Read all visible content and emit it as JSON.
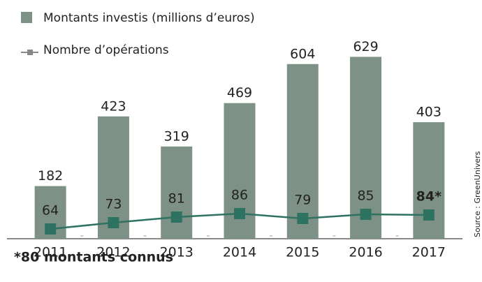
{
  "chart_data": {
    "type": "bar-line",
    "categories": [
      "2011",
      "2012",
      "2013",
      "2014",
      "2015",
      "2016",
      "2017"
    ],
    "series": [
      {
        "name": "Montants investis (millions d’euros)",
        "type": "bar",
        "color": "#7e9186",
        "values": [
          182,
          423,
          319,
          469,
          604,
          629,
          403
        ]
      },
      {
        "name": "Nombre d’opérations",
        "type": "line",
        "axis": "y2",
        "color": "#2e7262",
        "values": [
          64,
          73,
          81,
          86,
          79,
          85,
          84
        ],
        "value_labels": [
          "64",
          "73",
          "81",
          "86",
          "79",
          "85",
          "84*"
        ]
      }
    ],
    "ylim": [
      0,
      700
    ],
    "y2lim": [
      50,
      340
    ],
    "annotations": [
      "*80 montants connus"
    ],
    "source": "Source : GreenUnivers"
  }
}
